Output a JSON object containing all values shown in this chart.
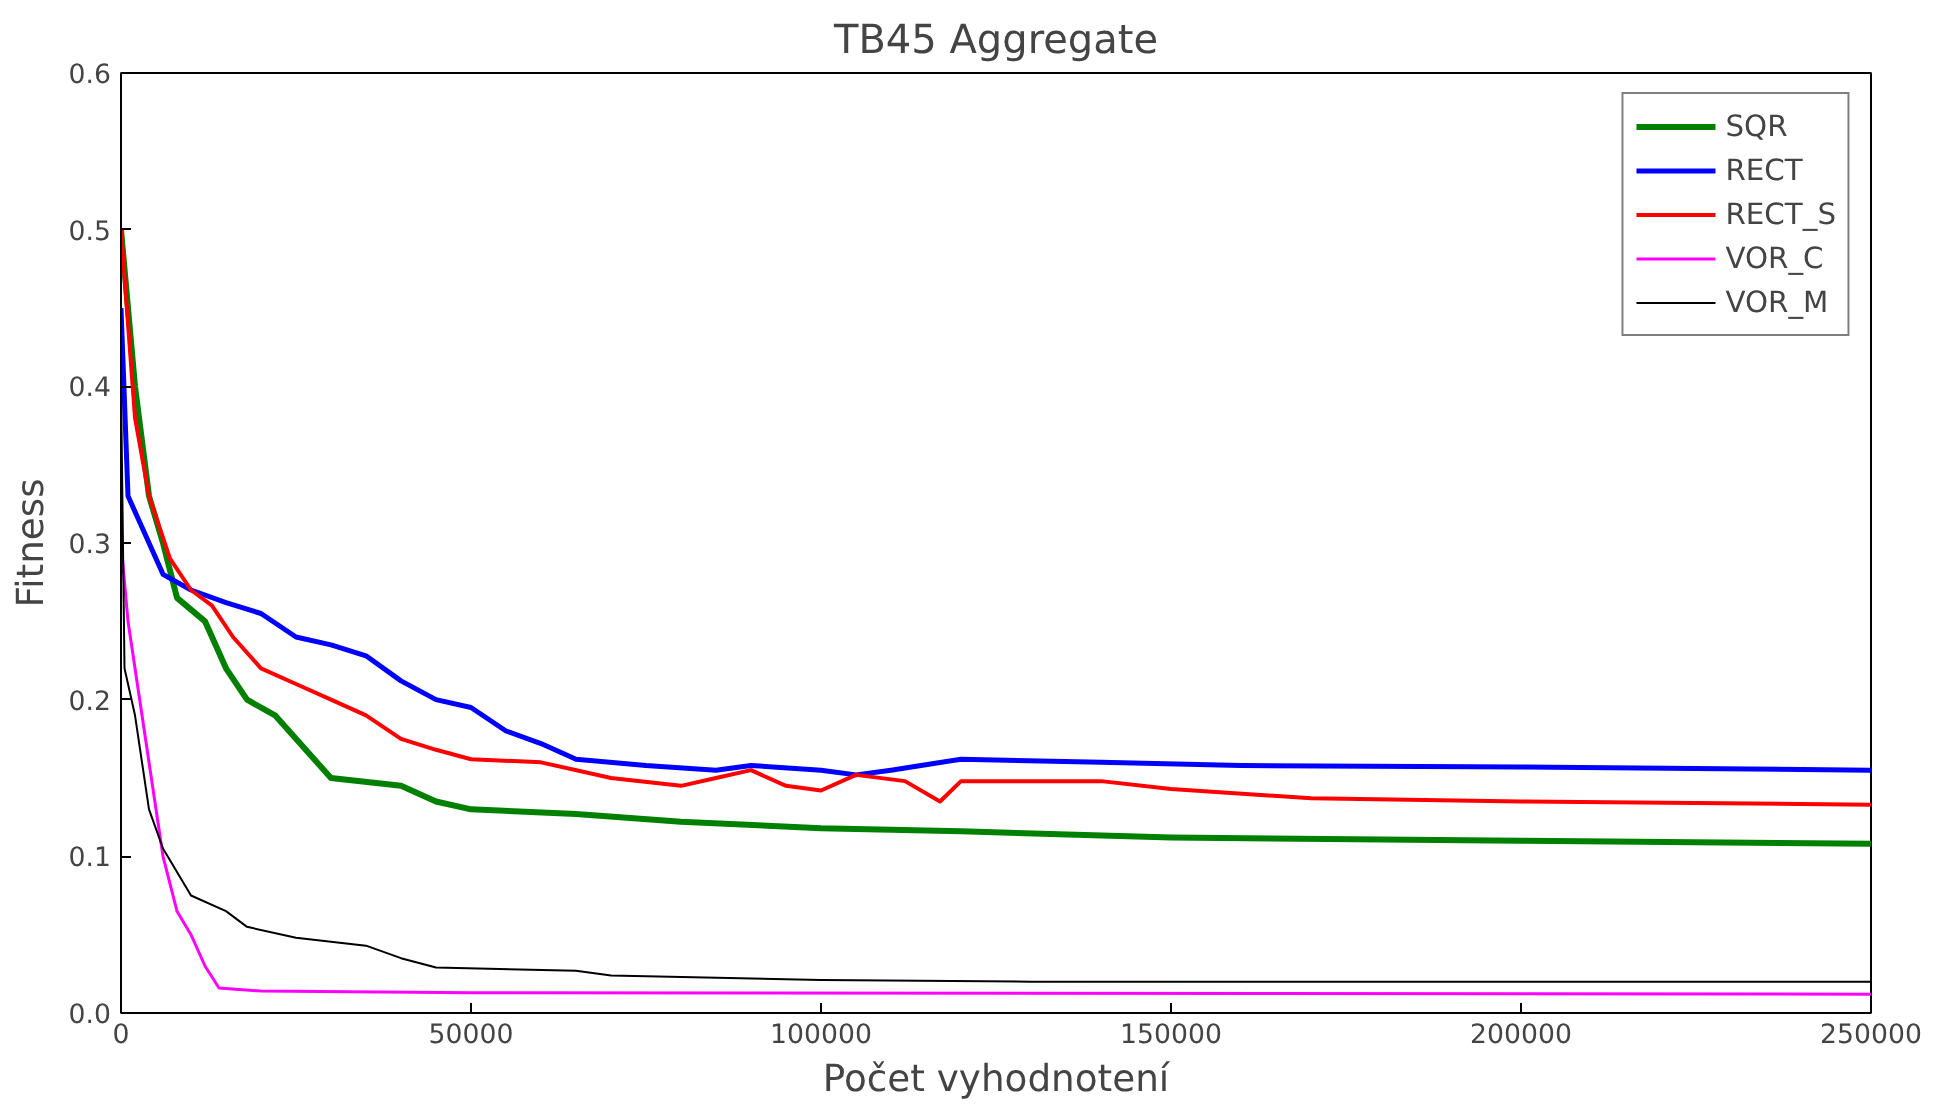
{
  "chart_data": {
    "type": "line",
    "title": "TB45 Aggregate",
    "xlabel": "Počet vyhodnotení",
    "ylabel": "Fitness",
    "xlim": [
      0,
      250000
    ],
    "ylim": [
      0,
      0.6
    ],
    "xticks": [
      0,
      50000,
      100000,
      150000,
      200000,
      250000
    ],
    "yticks": [
      {
        "value": 0,
        "label": "0.0"
      },
      0.1,
      0.2,
      0.3,
      0.4,
      0.5,
      0.6
    ],
    "grid": false,
    "legend": "top right",
    "marker": "none",
    "line_style": "solid",
    "series": [
      {
        "name": "SQR",
        "color": "#008000",
        "x": [
          0,
          2000,
          4000,
          6000,
          8000,
          12000,
          15000,
          18000,
          22000,
          27000,
          30000,
          40000,
          45000,
          50000,
          65000,
          80000,
          100000,
          120000,
          150000,
          200000,
          250000
        ],
        "values": [
          0.5,
          0.4,
          0.33,
          0.3,
          0.265,
          0.25,
          0.22,
          0.2,
          0.19,
          0.165,
          0.15,
          0.145,
          0.135,
          0.13,
          0.127,
          0.122,
          0.118,
          0.116,
          0.112,
          0.11,
          0.108
        ]
      },
      {
        "name": "RECT",
        "color": "#0000ff",
        "x": [
          0,
          1000,
          3000,
          6000,
          10000,
          15000,
          20000,
          25000,
          30000,
          35000,
          40000,
          45000,
          50000,
          55000,
          60000,
          65000,
          75000,
          85000,
          90000,
          100000,
          105000,
          110000,
          120000,
          140000,
          160000,
          200000,
          250000
        ],
        "values": [
          0.45,
          0.33,
          0.31,
          0.28,
          0.27,
          0.262,
          0.255,
          0.24,
          0.235,
          0.228,
          0.212,
          0.2,
          0.195,
          0.18,
          0.172,
          0.162,
          0.158,
          0.155,
          0.158,
          0.155,
          0.152,
          0.155,
          0.162,
          0.16,
          0.158,
          0.157,
          0.155
        ]
      },
      {
        "name": "RECT_S",
        "color": "#ff0000",
        "x": [
          0,
          2000,
          4000,
          7000,
          10000,
          13000,
          16000,
          20000,
          25000,
          30000,
          35000,
          40000,
          45000,
          50000,
          60000,
          70000,
          80000,
          85000,
          90000,
          95000,
          100000,
          105000,
          112000,
          117000,
          120000,
          140000,
          150000,
          170000,
          200000,
          250000
        ],
        "values": [
          0.5,
          0.38,
          0.33,
          0.29,
          0.27,
          0.26,
          0.24,
          0.22,
          0.21,
          0.2,
          0.19,
          0.175,
          0.168,
          0.162,
          0.16,
          0.15,
          0.145,
          0.15,
          0.155,
          0.145,
          0.142,
          0.152,
          0.148,
          0.135,
          0.148,
          0.148,
          0.143,
          0.137,
          0.135,
          0.133
        ]
      },
      {
        "name": "VOR_C",
        "color": "#ff00ff",
        "x": [
          0,
          1000,
          2000,
          4000,
          6000,
          8000,
          10000,
          12000,
          14000,
          20000,
          50000,
          250000
        ],
        "values": [
          0.3,
          0.25,
          0.22,
          0.16,
          0.1,
          0.065,
          0.05,
          0.03,
          0.016,
          0.014,
          0.013,
          0.012
        ]
      },
      {
        "name": "VOR_M",
        "color": "#000000",
        "x": [
          0,
          500,
          2000,
          4000,
          6000,
          8000,
          10000,
          15000,
          18000,
          25000,
          35000,
          40000,
          45000,
          65000,
          70000,
          100000,
          130000,
          250000
        ],
        "values": [
          0.4,
          0.22,
          0.19,
          0.13,
          0.105,
          0.09,
          0.075,
          0.065,
          0.055,
          0.048,
          0.043,
          0.035,
          0.029,
          0.027,
          0.024,
          0.021,
          0.02,
          0.02
        ]
      }
    ]
  }
}
